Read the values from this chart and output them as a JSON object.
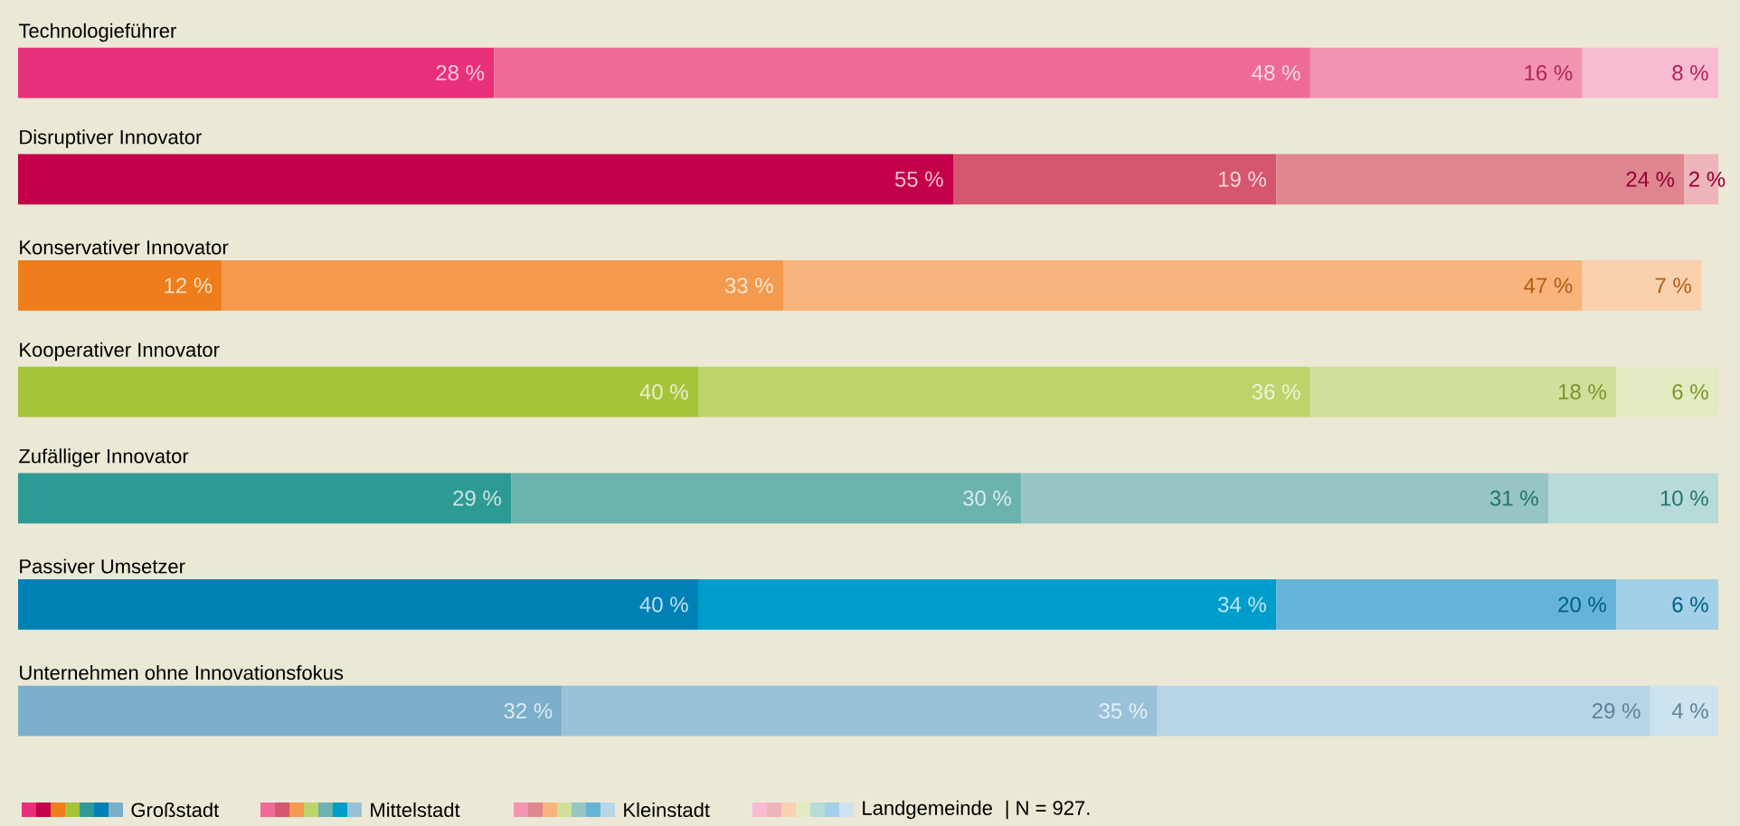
{
  "chart_data": {
    "type": "bar",
    "orientation": "horizontal",
    "stacked": true,
    "legend": "bottom",
    "xlim": [
      0,
      100
    ],
    "categories": [
      "Technologieführer",
      "Disruptiver Innovator",
      "Konservativer Innovator",
      "Kooperativer Innovator",
      "Zufälliger Innovator",
      "Passiver Umsetzer",
      "Unternehmen ohne Innovationsfokus"
    ],
    "series": [
      {
        "name": "Großstadt",
        "colors": [
          "#e8317a",
          "#c4004a",
          "#ee7d1b",
          "#a6c43a",
          "#2e9a94",
          "#0081b5",
          "#7bafcc"
        ],
        "values": [
          28,
          55,
          12,
          40,
          29,
          40,
          32
        ],
        "value_labels": [
          "28 %",
          "55 %",
          "12 %",
          "40 %",
          "29 %",
          "40 %",
          "32 %"
        ]
      },
      {
        "name": "Mittelstadt",
        "colors": [
          "#ee6b98",
          "#d4566f",
          "#f49a4e",
          "#bdd46b",
          "#6cb2ae",
          "#009dcb",
          "#99c1d8"
        ],
        "values": [
          48,
          19,
          33,
          36,
          30,
          34,
          35
        ],
        "value_labels": [
          "48 %",
          "19 %",
          "33 %",
          "36 %",
          "30 %",
          "34 %",
          "35 %"
        ]
      },
      {
        "name": "Kleinstadt",
        "colors": [
          "#f395b2",
          "#e0868f",
          "#f8b47c",
          "#d0e09a",
          "#97c5c2",
          "#66b3d8",
          "#b6d6e6"
        ],
        "values": [
          16,
          24,
          47,
          18,
          31,
          20,
          29
        ],
        "value_labels": [
          "16 %",
          "24 %",
          "47 %",
          "18 %",
          "31 %",
          "20 %",
          "29 %"
        ]
      },
      {
        "name": "Landgemeinde",
        "colors": [
          "#f7bcd1",
          "#edb5b9",
          "#fad1ae",
          "#e2ebc1",
          "#b8dad8",
          "#a3cfe8",
          "#cde3ef"
        ],
        "values": [
          8,
          2,
          7,
          6,
          10,
          6,
          4
        ],
        "value_labels": [
          "8 %",
          "2 %",
          "7 %",
          "6 %",
          "10 %",
          "6 %",
          "4 %"
        ]
      }
    ],
    "annotations": [
      "| N = 927."
    ]
  }
}
